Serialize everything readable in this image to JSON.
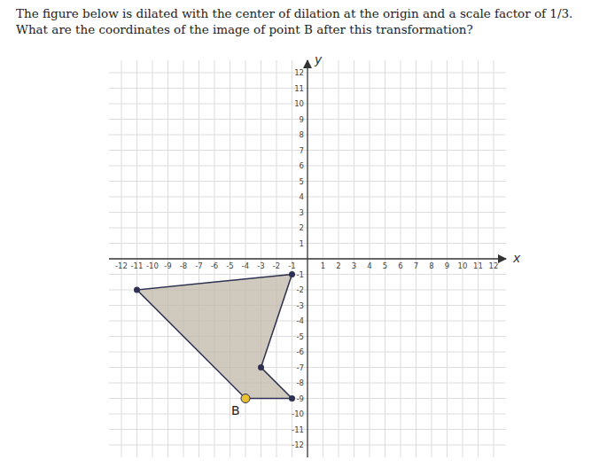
{
  "chart_data": {
    "type": "polygon",
    "title": "The figure below is dilated with the center of dilation at the origin and a scale factor of 1/3. What are the coordinates of the image of point B after this transformation?",
    "x": [
      -1,
      -11,
      -4,
      -1,
      -3
    ],
    "values": [
      -1,
      -2,
      -9,
      -9,
      -7
    ],
    "color": "#c0b8a8",
    "colors": [
      "#2d3050",
      "#2d3050",
      "#e8c030",
      "#2d3050",
      "#2d3050"
    ],
    "annotations": [
      {
        "text": "B",
        "x": -4,
        "y": -9
      }
    ],
    "x_label": "x",
    "y_label": "y",
    "xlim": [
      -12.8,
      12.8
    ],
    "ylim": [
      -12.8,
      12.8
    ],
    "xticks": [
      -12,
      -11,
      -10,
      -9,
      -8,
      -7,
      -6,
      -5,
      -4,
      -3,
      -2,
      -1,
      1,
      2,
      3,
      4,
      5,
      6,
      7,
      8,
      9,
      10,
      11,
      12
    ],
    "yticks": [
      -12,
      -11,
      -10,
      -9,
      -8,
      -7,
      -6,
      -5,
      -4,
      -3,
      -2,
      -1,
      1,
      2,
      3,
      4,
      5,
      6,
      7,
      8,
      9,
      10,
      11,
      12
    ],
    "grid": true
  }
}
